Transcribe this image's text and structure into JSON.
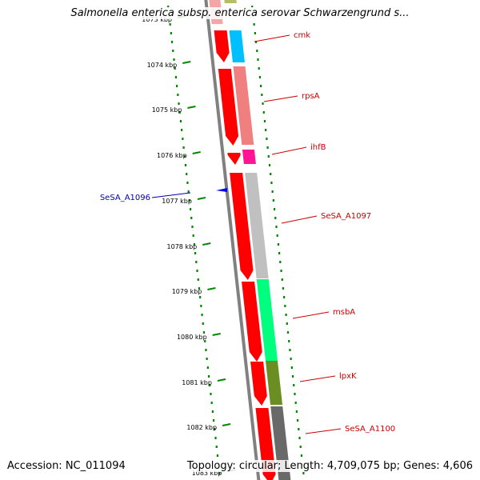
{
  "title": "Salmonella enterica subsp. enterica serovar Schwarzengrund s...",
  "accession": "Accession: NC_011094",
  "summary": "Topology: circular; Length: 4,709,075 bp; Genes: 4,606",
  "colors": {
    "forward_label": "#cc0000",
    "reverse_label": "#0000aa",
    "tick_marks": "#008800",
    "backbone": "#808080",
    "cds_arrow": "#ff0000"
  },
  "ruler": {
    "ticks": [
      {
        "label": "1073 kbp"
      },
      {
        "label": "1074 kbp"
      },
      {
        "label": "1075 kbp"
      },
      {
        "label": "1076 kbp"
      },
      {
        "label": "1077 kbp"
      },
      {
        "label": "1078 kbp"
      },
      {
        "label": "1079 kbp"
      },
      {
        "label": "1080 kbp"
      },
      {
        "label": "1081 kbp"
      },
      {
        "label": "1082 kbp"
      },
      {
        "label": "1083 kbp"
      }
    ]
  },
  "genes": [
    {
      "label": "cmk",
      "strand": "forward",
      "color": "#00bfff"
    },
    {
      "label": "rpsA",
      "strand": "forward",
      "color": "#f08080"
    },
    {
      "label": "ihfB",
      "strand": "forward",
      "color": "#ff1493"
    },
    {
      "label": "SeSA_A1097",
      "strand": "forward",
      "color": "#c0c0c0"
    },
    {
      "label": "msbA",
      "strand": "forward",
      "color": "#00ff7f"
    },
    {
      "label": "lpxK",
      "strand": "forward",
      "color": "#6b8e23"
    },
    {
      "label": "SeSA_A1100",
      "strand": "forward",
      "color": "#696969"
    },
    {
      "label": "SeSA_A1096",
      "strand": "reverse",
      "color": "#0000ff"
    }
  ]
}
